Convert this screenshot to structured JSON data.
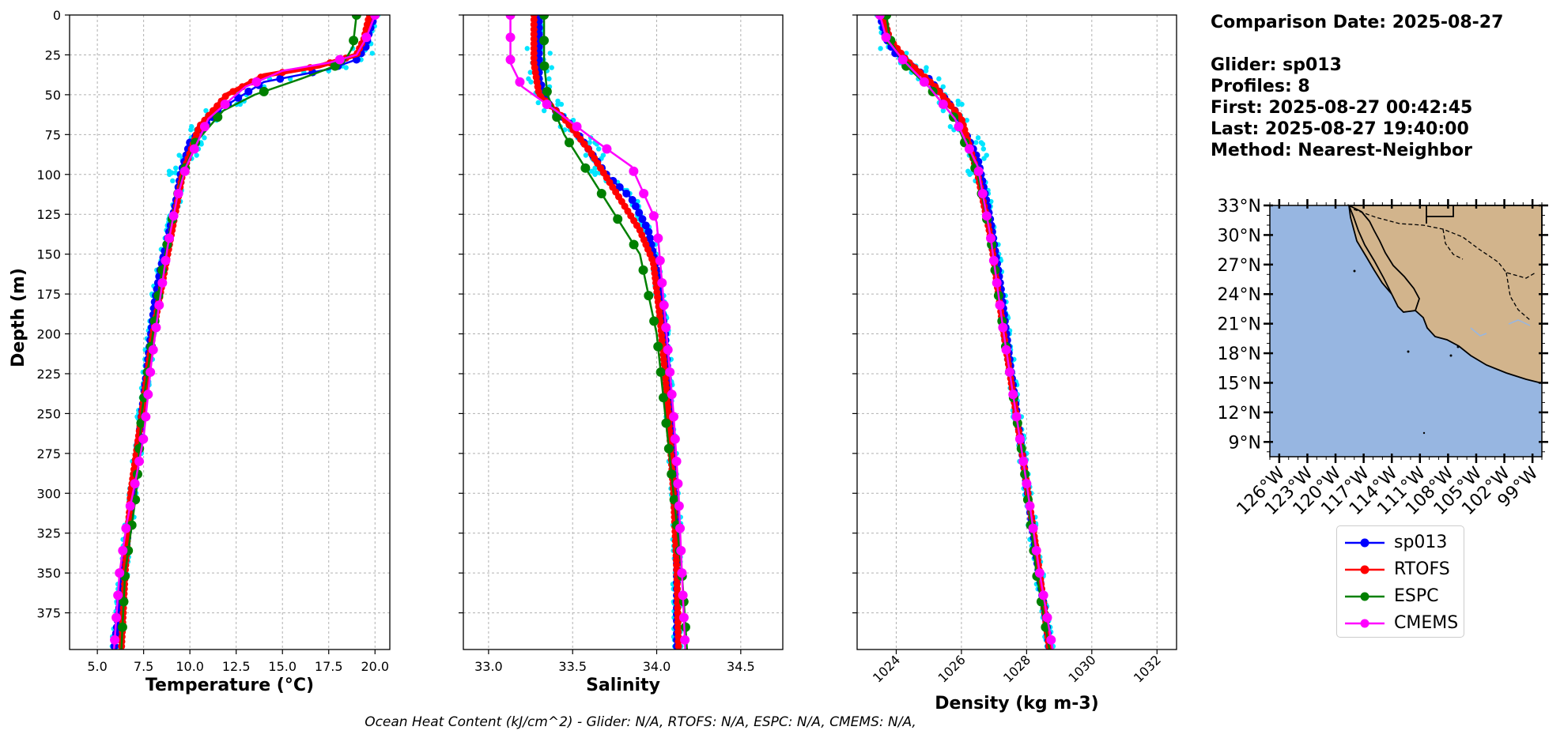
{
  "chart_data": [
    {
      "type": "line",
      "xlabel": "Temperature (°C)",
      "ylabel": "Depth (m)",
      "xlim": [
        3.5,
        20.8
      ],
      "ylim": [
        398,
        0
      ],
      "xticks": [
        "5.0",
        "7.5",
        "10.0",
        "12.5",
        "15.0",
        "17.5",
        "20.0"
      ],
      "xtick_values": [
        5.0,
        7.5,
        10.0,
        12.5,
        15.0,
        17.5,
        20.0
      ],
      "yticks": [
        "0",
        "25",
        "50",
        "75",
        "100",
        "125",
        "150",
        "175",
        "200",
        "225",
        "250",
        "275",
        "300",
        "325",
        "350",
        "375"
      ],
      "grid": true,
      "series": [
        {
          "name": "sp013",
          "x": [
            20.0,
            19.7,
            19.5,
            19.0,
            17.5,
            14.0,
            11.5,
            10.0,
            9.5,
            9.2,
            8.8,
            8.4,
            8.1,
            7.9,
            7.6,
            7.3,
            7.0,
            6.7,
            6.4,
            6.1,
            5.9
          ],
          "y": [
            0,
            10,
            20,
            28,
            34,
            42,
            60,
            80,
            100,
            120,
            140,
            160,
            180,
            200,
            230,
            260,
            290,
            320,
            350,
            380,
            398
          ]
        },
        {
          "name": "RTOFS",
          "x": [
            19.7,
            19.4,
            19.0,
            17.0,
            14.0,
            12.0,
            10.5,
            9.6,
            9.2,
            8.8,
            8.4,
            8.0,
            7.7,
            7.4,
            7.1,
            6.8,
            6.5,
            6.3
          ],
          "y": [
            0,
            15,
            25,
            32,
            38,
            50,
            70,
            100,
            125,
            150,
            175,
            200,
            225,
            250,
            275,
            300,
            350,
            398
          ]
        },
        {
          "name": "ESPC",
          "x": [
            19.0,
            18.9,
            18.8,
            18.3,
            16.0,
            13.5,
            11.8,
            10.3,
            9.6,
            9.1,
            8.5,
            8.0,
            7.7,
            7.4,
            7.1,
            6.5,
            6.3
          ],
          "y": [
            0,
            10,
            20,
            30,
            40,
            50,
            60,
            80,
            100,
            125,
            160,
            200,
            225,
            250,
            300,
            350,
            398
          ]
        },
        {
          "name": "CMEMS",
          "x": [
            20.0,
            19.5,
            19.0,
            17.5,
            15.0,
            13.0,
            11.0,
            9.8,
            9.3,
            8.8,
            8.3,
            7.9,
            7.5,
            7.1,
            6.6,
            6.2,
            5.9
          ],
          "y": [
            0,
            15,
            25,
            30,
            35,
            45,
            65,
            95,
            115,
            145,
            185,
            220,
            265,
            290,
            318,
            350,
            398
          ]
        }
      ]
    },
    {
      "type": "line",
      "xlabel": "Salinity",
      "xlim": [
        32.85,
        34.75
      ],
      "ylim": [
        398,
        0
      ],
      "xticks": [
        "33.0",
        "33.5",
        "34.0",
        "34.5"
      ],
      "xtick_values": [
        33.0,
        33.5,
        34.0,
        34.5
      ],
      "grid": true,
      "series": [
        {
          "name": "sp013",
          "x": [
            33.3,
            33.3,
            33.35,
            33.5,
            33.6,
            33.7,
            33.85,
            33.95,
            34.0,
            34.05,
            34.08,
            34.1,
            34.12,
            34.12,
            34.12,
            34.12
          ],
          "y": [
            0,
            40,
            55,
            70,
            85,
            100,
            115,
            135,
            160,
            200,
            250,
            290,
            320,
            350,
            380,
            398
          ]
        },
        {
          "name": "RTOFS",
          "x": [
            33.27,
            33.27,
            33.3,
            33.45,
            33.6,
            33.75,
            33.9,
            33.98,
            34.02,
            34.07,
            34.1,
            34.12,
            34.13
          ],
          "y": [
            0,
            30,
            50,
            65,
            85,
            110,
            135,
            155,
            190,
            250,
            300,
            350,
            398
          ]
        },
        {
          "name": "ESPC",
          "x": [
            33.33,
            33.33,
            33.35,
            33.45,
            33.6,
            33.75,
            33.9,
            34.0,
            34.05,
            34.1,
            34.15,
            34.18
          ],
          "y": [
            0,
            30,
            50,
            75,
            100,
            125,
            150,
            200,
            250,
            300,
            350,
            398
          ]
        },
        {
          "name": "CMEMS",
          "x": [
            33.13,
            33.13,
            33.2,
            33.4,
            33.65,
            33.85,
            34.0,
            34.05,
            34.1,
            34.13,
            34.15,
            34.17
          ],
          "y": [
            0,
            30,
            45,
            60,
            80,
            95,
            130,
            190,
            250,
            300,
            350,
            398
          ]
        }
      ]
    },
    {
      "type": "line",
      "xlabel": "Density (kg m-3)",
      "xlim": [
        1022.8,
        1032.6
      ],
      "ylim": [
        398,
        0
      ],
      "xticks": [
        "1024",
        "1026",
        "1028",
        "1030",
        "1032"
      ],
      "xtick_values": [
        1024,
        1026,
        1028,
        1030,
        1032
      ],
      "grid": true,
      "series": [
        {
          "name": "sp013",
          "x": [
            1023.5,
            1023.7,
            1024.0,
            1025.0,
            1025.8,
            1026.5,
            1026.9,
            1027.2,
            1027.5,
            1027.9,
            1028.3,
            1028.6,
            1028.7
          ],
          "y": [
            0,
            15,
            25,
            40,
            60,
            90,
            130,
            170,
            220,
            280,
            340,
            380,
            398
          ]
        },
        {
          "name": "RTOFS",
          "x": [
            1023.6,
            1023.8,
            1024.3,
            1025.2,
            1026.0,
            1026.5,
            1026.9,
            1027.3,
            1027.9,
            1028.4,
            1028.7
          ],
          "y": [
            0,
            15,
            28,
            45,
            65,
            100,
            140,
            200,
            280,
            350,
            398
          ]
        },
        {
          "name": "ESPC",
          "x": [
            1023.7,
            1023.8,
            1024.2,
            1025.0,
            1025.8,
            1026.5,
            1026.9,
            1027.3,
            1027.9,
            1028.3,
            1028.7
          ],
          "y": [
            0,
            15,
            30,
            45,
            65,
            100,
            140,
            200,
            280,
            350,
            398
          ]
        },
        {
          "name": "CMEMS",
          "x": [
            1023.5,
            1023.7,
            1024.2,
            1025.0,
            1025.8,
            1026.5,
            1026.9,
            1027.3,
            1027.9,
            1028.4,
            1028.8
          ],
          "y": [
            0,
            15,
            28,
            45,
            65,
            95,
            140,
            200,
            280,
            350,
            398
          ]
        }
      ]
    }
  ],
  "colors": {
    "sp013": "#0000ff",
    "RTOFS": "#ff0000",
    "ESPC": "#008000",
    "CMEMS": "#ff00ff",
    "glider_points": "#00e5ff",
    "ocean": "#97b6e1",
    "land": "#d2b48c"
  },
  "info": {
    "comparison_date": "Comparison Date: 2025-08-27",
    "glider": "Glider: sp013",
    "profiles": "Profiles: 8",
    "first": "First: 2025-08-27 00:42:45",
    "last": "Last: 2025-08-27 19:40:00",
    "method": "Method: Nearest-Neighbor"
  },
  "map": {
    "lat_labels": [
      "33°N",
      "30°N",
      "27°N",
      "24°N",
      "21°N",
      "18°N",
      "15°N",
      "12°N",
      "9°N"
    ],
    "lon_labels": [
      "126°W",
      "123°W",
      "120°W",
      "117°W",
      "114°W",
      "111°W",
      "108°W",
      "105°W",
      "102°W",
      "99°W"
    ]
  },
  "legend": {
    "items": [
      "sp013",
      "RTOFS",
      "ESPC",
      "CMEMS"
    ]
  },
  "footer": "Ocean Heat Content (kJ/cm^2) - Glider: N/A,  RTOFS: N/A,  ESPC: N/A,  CMEMS: N/A,"
}
